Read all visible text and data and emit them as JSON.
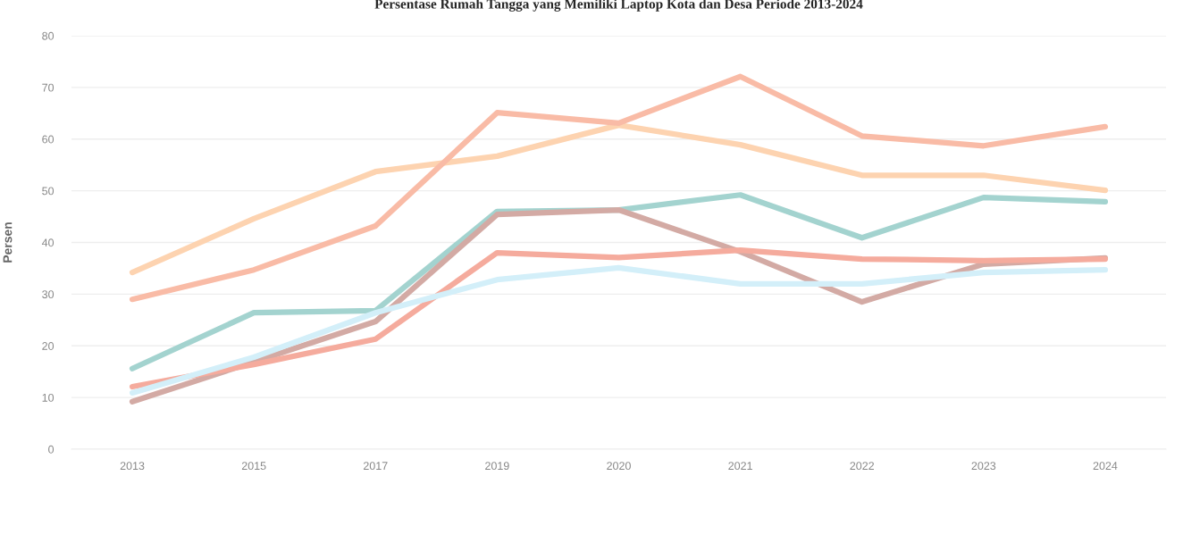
{
  "chart_data": {
    "type": "line",
    "title": "Persentase Rumah Tangga yang Memiliki Laptop Kota dan Desa Periode 2013-2024",
    "ylabel": "Persen",
    "categories": [
      "2013",
      "2015",
      "2017",
      "2019",
      "2020",
      "2021",
      "2022",
      "2023",
      "2024"
    ],
    "ylim": [
      0,
      80
    ],
    "yticks": [
      0,
      10,
      20,
      30,
      40,
      50,
      60,
      70,
      80
    ],
    "grid": "y",
    "line_style": "solid",
    "series": [
      {
        "color": "#fdd3b0",
        "values": [
          34.2,
          44.6,
          53.7,
          56.7,
          62.7,
          58.9,
          53.0,
          53.0,
          50.1
        ]
      },
      {
        "color": "#f9bba6",
        "values": [
          29.0,
          34.7,
          43.2,
          65.1,
          63.1,
          72.1,
          60.6,
          58.7,
          62.4
        ]
      },
      {
        "color": "#a3d3cf",
        "values": [
          15.6,
          26.4,
          26.8,
          46.0,
          46.3,
          49.2,
          40.9,
          48.7,
          47.9
        ]
      },
      {
        "color": "#d3aaa4",
        "values": [
          9.2,
          16.9,
          24.7,
          45.4,
          46.3,
          38.2,
          28.5,
          35.8,
          37.0
        ]
      },
      {
        "color": "#f5ab9d",
        "values": [
          12.1,
          16.4,
          21.3,
          38.0,
          37.1,
          38.5,
          36.8,
          36.5,
          36.8
        ]
      },
      {
        "color": "#d3eff9",
        "values": [
          10.9,
          17.8,
          26.4,
          32.8,
          35.1,
          32.0,
          32.0,
          34.2,
          34.7
        ]
      }
    ]
  }
}
